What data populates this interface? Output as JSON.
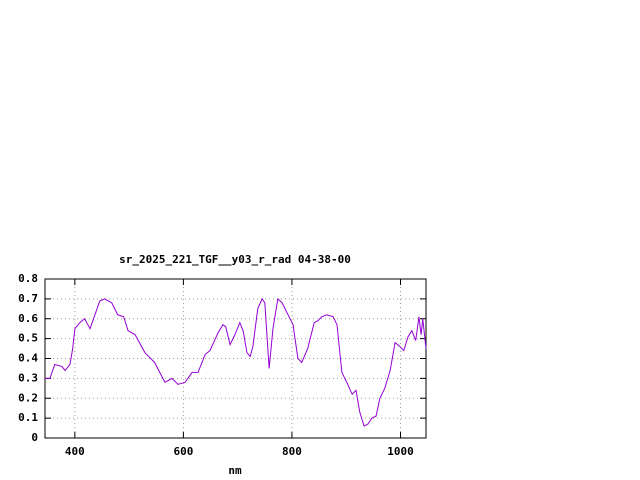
{
  "chart_data": {
    "type": "line",
    "title": "sr_2025_221_TGF__y03_r_rad 04-38-00",
    "x_label": "nm",
    "x": [
      345,
      354,
      363,
      376,
      382,
      391,
      396,
      400,
      409,
      418,
      428,
      437,
      446,
      455,
      468,
      479,
      490,
      498,
      511,
      529,
      547,
      566,
      579,
      590,
      603,
      616,
      627,
      640,
      649,
      664,
      673,
      678,
      686,
      695,
      704,
      710,
      717,
      723,
      728,
      737,
      745,
      750,
      758,
      765,
      774,
      782,
      791,
      802,
      811,
      818,
      829,
      841,
      848,
      855,
      864,
      876,
      883,
      892,
      901,
      911,
      918,
      925,
      933,
      940,
      947,
      955,
      962,
      971,
      981,
      990,
      999,
      1006,
      1014,
      1021,
      1028,
      1034,
      1038,
      1041,
      1047
    ],
    "series": [
      {
        "color": "#9400d3",
        "values": [
          0.3,
          0.3,
          0.37,
          0.36,
          0.34,
          0.37,
          0.45,
          0.55,
          0.58,
          0.6,
          0.55,
          0.62,
          0.69,
          0.7,
          0.68,
          0.62,
          0.61,
          0.54,
          0.52,
          0.43,
          0.38,
          0.28,
          0.3,
          0.27,
          0.28,
          0.33,
          0.33,
          0.42,
          0.44,
          0.53,
          0.57,
          0.56,
          0.47,
          0.52,
          0.58,
          0.54,
          0.43,
          0.41,
          0.46,
          0.65,
          0.7,
          0.68,
          0.35,
          0.55,
          0.7,
          0.68,
          0.63,
          0.57,
          0.4,
          0.38,
          0.45,
          0.58,
          0.59,
          0.61,
          0.62,
          0.61,
          0.57,
          0.33,
          0.28,
          0.22,
          0.24,
          0.13,
          0.06,
          0.07,
          0.1,
          0.11,
          0.2,
          0.25,
          0.34,
          0.48,
          0.46,
          0.44,
          0.51,
          0.54,
          0.49,
          0.61,
          0.52,
          0.6,
          0.45
        ]
      }
    ],
    "xlim": [
      345,
      1047
    ],
    "xticks": [
      400,
      600,
      800,
      1000
    ],
    "ylim": [
      0,
      0.8
    ],
    "yticks": [
      0,
      0.1,
      0.2,
      0.3,
      0.4,
      0.5,
      0.6,
      0.7,
      0.8
    ],
    "grid": true
  }
}
